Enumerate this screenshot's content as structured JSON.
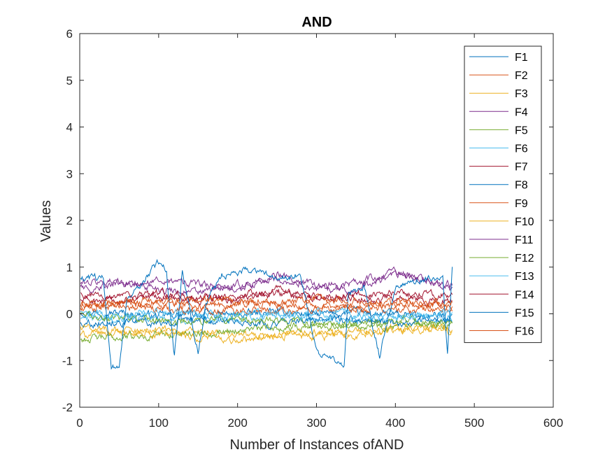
{
  "chart_data": {
    "type": "line",
    "title": "AND",
    "xlabel": "Number of Instances ofAND",
    "ylabel": "Values",
    "xlim": [
      0,
      600
    ],
    "ylim": [
      -2,
      6
    ],
    "xticks": [
      0,
      100,
      200,
      300,
      400,
      500,
      600
    ],
    "yticks": [
      -2,
      -1,
      0,
      1,
      2,
      3,
      4,
      5,
      6
    ],
    "grid": false,
    "legend_position": "top-right",
    "n_points": 472,
    "series": [
      {
        "name": "F1",
        "color": "#0072BD",
        "points": [
          [
            0,
            0.05
          ],
          [
            50,
            0.02
          ],
          [
            100,
            -0.05
          ],
          [
            150,
            0.0
          ],
          [
            200,
            -0.03
          ],
          [
            250,
            0.04
          ],
          [
            300,
            -0.02
          ],
          [
            350,
            0.03
          ],
          [
            400,
            -0.04
          ],
          [
            472,
            -0.05
          ]
        ]
      },
      {
        "name": "F2",
        "color": "#D95319",
        "points": [
          [
            0,
            0.18
          ],
          [
            50,
            0.15
          ],
          [
            100,
            0.12
          ],
          [
            150,
            0.08
          ],
          [
            200,
            0.1
          ],
          [
            250,
            0.05
          ],
          [
            300,
            0.12
          ],
          [
            350,
            0.06
          ],
          [
            400,
            0.1
          ],
          [
            472,
            0.08
          ]
        ]
      },
      {
        "name": "F3",
        "color": "#EDB120",
        "points": [
          [
            0,
            -0.45
          ],
          [
            50,
            -0.4
          ],
          [
            100,
            -0.35
          ],
          [
            150,
            -0.4
          ],
          [
            200,
            -0.45
          ],
          [
            250,
            -0.5
          ],
          [
            300,
            -0.4
          ],
          [
            350,
            -0.45
          ],
          [
            400,
            -0.3
          ],
          [
            472,
            -0.35
          ]
        ]
      },
      {
        "name": "F4",
        "color": "#7E2F8E",
        "points": [
          [
            0,
            0.65
          ],
          [
            50,
            0.7
          ],
          [
            100,
            0.55
          ],
          [
            150,
            0.45
          ],
          [
            200,
            0.6
          ],
          [
            250,
            0.75
          ],
          [
            300,
            0.55
          ],
          [
            350,
            0.5
          ],
          [
            400,
            0.85
          ],
          [
            472,
            0.6
          ]
        ]
      },
      {
        "name": "F5",
        "color": "#77AC30",
        "points": [
          [
            0,
            -0.55
          ],
          [
            50,
            -0.5
          ],
          [
            100,
            -0.45
          ],
          [
            150,
            -0.4
          ],
          [
            200,
            -0.35
          ],
          [
            250,
            -0.3
          ],
          [
            300,
            -0.25
          ],
          [
            350,
            -0.2
          ],
          [
            400,
            -0.3
          ],
          [
            472,
            -0.25
          ]
        ]
      },
      {
        "name": "F6",
        "color": "#4DBEEE",
        "points": [
          [
            0,
            -0.1
          ],
          [
            50,
            -0.12
          ],
          [
            100,
            -0.08
          ],
          [
            150,
            -0.15
          ],
          [
            200,
            -0.1
          ],
          [
            250,
            -0.05
          ],
          [
            300,
            -0.1
          ],
          [
            350,
            -0.12
          ],
          [
            400,
            -0.08
          ],
          [
            472,
            -0.1
          ]
        ]
      },
      {
        "name": "F7",
        "color": "#A2142F",
        "points": [
          [
            0,
            0.3
          ],
          [
            50,
            0.25
          ],
          [
            100,
            0.4
          ],
          [
            150,
            0.35
          ],
          [
            200,
            0.3
          ],
          [
            250,
            0.45
          ],
          [
            300,
            0.3
          ],
          [
            350,
            0.35
          ],
          [
            400,
            0.3
          ],
          [
            472,
            0.25
          ]
        ]
      },
      {
        "name": "F8",
        "color": "#0072BD",
        "points": [
          [
            0,
            -0.2
          ],
          [
            50,
            -0.15
          ],
          [
            100,
            -0.2
          ],
          [
            150,
            -0.1
          ],
          [
            200,
            -0.15
          ],
          [
            250,
            -0.2
          ],
          [
            300,
            -0.1
          ],
          [
            350,
            -0.15
          ],
          [
            400,
            -0.2
          ],
          [
            472,
            -0.15
          ]
        ]
      },
      {
        "name": "F9",
        "color": "#D95319",
        "points": [
          [
            0,
            0.1
          ],
          [
            50,
            0.2
          ],
          [
            100,
            0.3
          ],
          [
            150,
            0.15
          ],
          [
            200,
            0.2
          ],
          [
            250,
            0.25
          ],
          [
            300,
            0.15
          ],
          [
            350,
            0.2
          ],
          [
            400,
            0.25
          ],
          [
            472,
            0.15
          ]
        ]
      },
      {
        "name": "F10",
        "color": "#EDB120",
        "points": [
          [
            0,
            -0.3
          ],
          [
            50,
            -0.35
          ],
          [
            100,
            -0.45
          ],
          [
            150,
            -0.5
          ],
          [
            200,
            -0.55
          ],
          [
            250,
            -0.45
          ],
          [
            300,
            -0.5
          ],
          [
            350,
            -0.4
          ],
          [
            400,
            -0.35
          ],
          [
            472,
            -0.3
          ]
        ]
      },
      {
        "name": "F11",
        "color": "#7E2F8E",
        "points": [
          [
            0,
            0.55
          ],
          [
            50,
            0.6
          ],
          [
            100,
            0.7
          ],
          [
            150,
            0.65
          ],
          [
            200,
            0.5
          ],
          [
            250,
            0.85
          ],
          [
            300,
            0.6
          ],
          [
            350,
            0.65
          ],
          [
            400,
            0.9
          ],
          [
            472,
            0.55
          ]
        ]
      },
      {
        "name": "F12",
        "color": "#77AC30",
        "points": [
          [
            0,
            -0.05
          ],
          [
            50,
            -0.1
          ],
          [
            100,
            -0.15
          ],
          [
            150,
            -0.2
          ],
          [
            200,
            -0.1
          ],
          [
            250,
            -0.15
          ],
          [
            300,
            -0.2
          ],
          [
            350,
            -0.25
          ],
          [
            400,
            -0.15
          ],
          [
            472,
            -0.2
          ]
        ]
      },
      {
        "name": "F13",
        "color": "#4DBEEE",
        "points": [
          [
            0,
            0.0
          ],
          [
            50,
            -0.05
          ],
          [
            100,
            0.05
          ],
          [
            150,
            -0.02
          ],
          [
            200,
            0.0
          ],
          [
            250,
            -0.05
          ],
          [
            300,
            0.02
          ],
          [
            350,
            -0.03
          ],
          [
            400,
            0.0
          ],
          [
            472,
            -0.02
          ]
        ]
      },
      {
        "name": "F14",
        "color": "#A2142F",
        "points": [
          [
            0,
            0.4
          ],
          [
            50,
            0.35
          ],
          [
            100,
            0.45
          ],
          [
            150,
            0.3
          ],
          [
            200,
            0.4
          ],
          [
            250,
            0.5
          ],
          [
            300,
            0.35
          ],
          [
            350,
            0.4
          ],
          [
            400,
            0.45
          ],
          [
            472,
            0.4
          ]
        ]
      },
      {
        "name": "F15",
        "color": "#0072BD",
        "points": [
          [
            0,
            0.7
          ],
          [
            30,
            0.8
          ],
          [
            40,
            -1.2
          ],
          [
            50,
            -1.1
          ],
          [
            60,
            0.3
          ],
          [
            80,
            0.7
          ],
          [
            100,
            1.1
          ],
          [
            110,
            0.9
          ],
          [
            120,
            -0.9
          ],
          [
            130,
            0.9
          ],
          [
            150,
            -0.8
          ],
          [
            160,
            0.2
          ],
          [
            180,
            0.85
          ],
          [
            200,
            0.9
          ],
          [
            220,
            0.95
          ],
          [
            250,
            0.8
          ],
          [
            280,
            0.85
          ],
          [
            300,
            -0.8
          ],
          [
            320,
            -1.0
          ],
          [
            335,
            -1.1
          ],
          [
            340,
            0.4
          ],
          [
            360,
            0.6
          ],
          [
            380,
            -0.9
          ],
          [
            400,
            0.6
          ],
          [
            420,
            0.7
          ],
          [
            440,
            0.75
          ],
          [
            460,
            0.8
          ],
          [
            466,
            -0.8
          ],
          [
            472,
            0.95
          ]
        ]
      },
      {
        "name": "F16",
        "color": "#D95319",
        "points": [
          [
            0,
            0.2
          ],
          [
            50,
            0.25
          ],
          [
            100,
            0.2
          ],
          [
            150,
            0.3
          ],
          [
            200,
            0.25
          ],
          [
            250,
            0.2
          ],
          [
            300,
            0.3
          ],
          [
            350,
            0.25
          ],
          [
            400,
            0.2
          ],
          [
            472,
            0.25
          ]
        ]
      }
    ]
  }
}
